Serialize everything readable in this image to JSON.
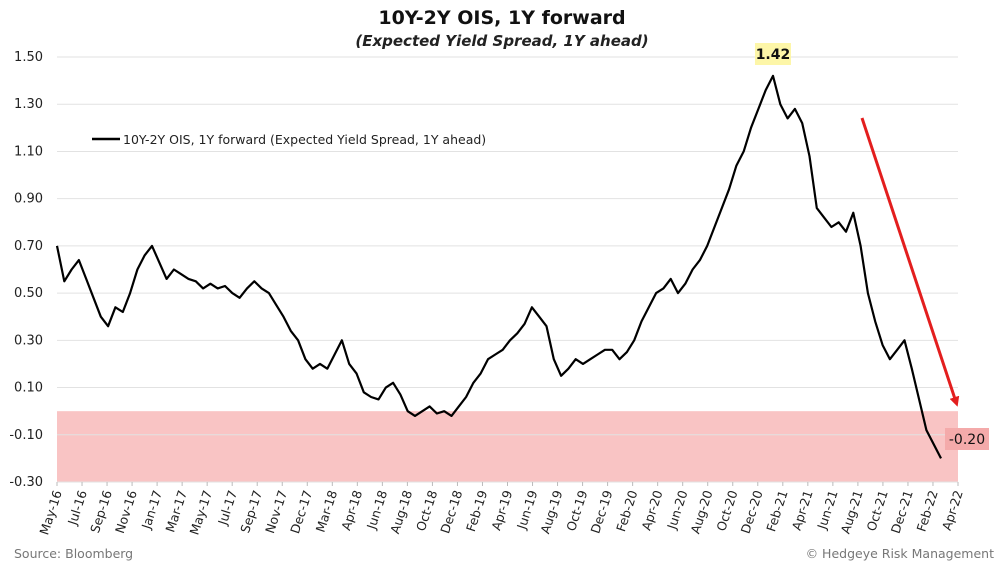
{
  "chart_data": {
    "type": "line",
    "title": "10Y-2Y OIS, 1Y forward",
    "subtitle": "(Expected Yield Spread, 1Y ahead)",
    "ylim": [
      -0.3,
      1.5
    ],
    "yticks": [
      "1.50",
      "1.30",
      "1.10",
      "0.90",
      "0.70",
      "0.50",
      "0.30",
      "0.10",
      "-0.10",
      "-0.30"
    ],
    "ytick_values": [
      1.5,
      1.3,
      1.1,
      0.9,
      0.7,
      0.5,
      0.3,
      0.1,
      -0.1,
      -0.3
    ],
    "xticks": [
      "May-16",
      "Jul-16",
      "Sep-16",
      "Nov-16",
      "Jan-17",
      "Mar-17",
      "May-17",
      "Jul-17",
      "Sep-17",
      "Nov-17",
      "Dec-17",
      "Mar-18",
      "Apr-18",
      "Jun-18",
      "Aug-18",
      "Oct-18",
      "Dec-18",
      "Feb-19",
      "Apr-19",
      "Jun-19",
      "Aug-19",
      "Oct-19",
      "Dec-19",
      "Feb-20",
      "Apr-20",
      "Jun-20",
      "Aug-20",
      "Oct-20",
      "Dec-20",
      "Feb-21",
      "Apr-21",
      "Jun-21",
      "Aug-21",
      "Oct-21",
      "Dec-21",
      "Feb-22",
      "Apr-22"
    ],
    "grid": true,
    "legend_placement": "top-left",
    "series": [
      {
        "name": "10Y-2Y OIS, 1Y forward (Expected Yield Spread, 1Y ahead)",
        "color": "#000000",
        "values": [
          0.7,
          0.55,
          0.6,
          0.64,
          0.56,
          0.48,
          0.4,
          0.36,
          0.44,
          0.42,
          0.5,
          0.6,
          0.66,
          0.7,
          0.63,
          0.56,
          0.6,
          0.58,
          0.56,
          0.55,
          0.52,
          0.54,
          0.52,
          0.53,
          0.5,
          0.48,
          0.52,
          0.55,
          0.52,
          0.5,
          0.45,
          0.4,
          0.34,
          0.3,
          0.22,
          0.18,
          0.2,
          0.18,
          0.24,
          0.3,
          0.2,
          0.16,
          0.08,
          0.06,
          0.05,
          0.1,
          0.12,
          0.07,
          0.0,
          -0.02,
          0.0,
          0.02,
          -0.01,
          0.0,
          -0.02,
          0.02,
          0.06,
          0.12,
          0.16,
          0.22,
          0.24,
          0.26,
          0.3,
          0.33,
          0.37,
          0.44,
          0.4,
          0.36,
          0.22,
          0.15,
          0.18,
          0.22,
          0.2,
          0.22,
          0.24,
          0.26,
          0.26,
          0.22,
          0.25,
          0.3,
          0.38,
          0.44,
          0.5,
          0.52,
          0.56,
          0.5,
          0.54,
          0.6,
          0.64,
          0.7,
          0.78,
          0.86,
          0.94,
          1.04,
          1.1,
          1.2,
          1.28,
          1.36,
          1.42,
          1.3,
          1.24,
          1.28,
          1.22,
          1.08,
          0.86,
          0.82,
          0.78,
          0.8,
          0.76,
          0.84,
          0.7,
          0.5,
          0.38,
          0.28,
          0.22,
          0.26,
          0.3,
          0.18,
          0.05,
          -0.08,
          -0.14,
          -0.2
        ]
      }
    ],
    "annotations": [
      {
        "label": "1.42",
        "value": 1.42,
        "date": "Feb-21"
      },
      {
        "label": "-0.20",
        "value": -0.2,
        "date": "Mar-22"
      }
    ],
    "shaded_region": {
      "from": -0.3,
      "to": 0.0,
      "color": "#f9c4c4"
    },
    "trend_arrow_color": "#e31e1e"
  },
  "footer": {
    "source": "Source: Bloomberg",
    "credit": "© Hedgeye Risk Management"
  }
}
